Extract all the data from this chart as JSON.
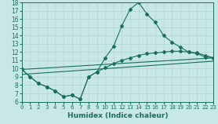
{
  "xlabel": "Humidex (Indice chaleur)",
  "bg_color": "#c8e8e5",
  "line_color": "#1a6e60",
  "grid_color": "#aacfcf",
  "xlim": [
    0,
    23
  ],
  "ylim": [
    6,
    18
  ],
  "xticks": [
    0,
    1,
    2,
    3,
    4,
    5,
    6,
    7,
    8,
    9,
    10,
    11,
    12,
    13,
    14,
    15,
    16,
    17,
    18,
    19,
    20,
    21,
    22,
    23
  ],
  "yticks": [
    6,
    7,
    8,
    9,
    10,
    11,
    12,
    13,
    14,
    15,
    16,
    17,
    18
  ],
  "curve1_x": [
    0,
    1,
    2,
    3,
    4,
    5,
    6,
    7,
    8,
    9,
    10,
    11,
    12,
    13,
    14,
    15,
    16,
    17,
    18,
    19,
    20,
    21,
    22,
    23
  ],
  "curve1_y": [
    9.9,
    9.0,
    8.2,
    7.8,
    7.3,
    6.6,
    6.8,
    6.3,
    9.0,
    9.6,
    11.3,
    12.7,
    15.2,
    17.2,
    18.0,
    16.6,
    15.6,
    14.0,
    13.2,
    12.6,
    12.0,
    11.8,
    11.4,
    11.3
  ],
  "curve2_x": [
    0,
    1,
    2,
    3,
    4,
    5,
    6,
    7,
    8,
    9,
    10,
    11,
    12,
    13,
    14,
    15,
    16,
    17,
    18,
    19,
    20,
    21,
    22,
    23
  ],
  "curve2_y": [
    9.9,
    9.0,
    8.2,
    7.8,
    7.3,
    6.6,
    6.8,
    6.3,
    9.0,
    9.6,
    10.1,
    10.6,
    11.0,
    11.3,
    11.6,
    11.8,
    11.9,
    12.0,
    12.1,
    12.1,
    12.0,
    11.9,
    11.6,
    11.3
  ],
  "line3_x": [
    0,
    23
  ],
  "line3_y": [
    9.9,
    11.3
  ],
  "line4_x": [
    0,
    23
  ],
  "line4_y": [
    9.3,
    10.9
  ]
}
